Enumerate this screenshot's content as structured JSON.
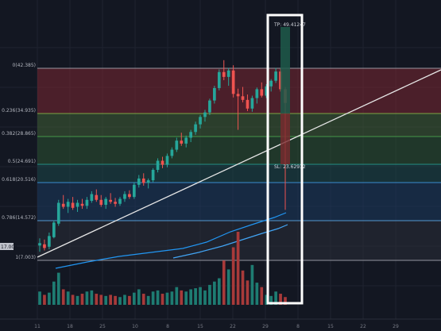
{
  "chart_data": {
    "type": "candlestick",
    "y_axis": {
      "scale": "log",
      "range": [
        16.0,
        52.0
      ]
    },
    "grid": true,
    "fib_levels": [
      {
        "ratio": 0,
        "label": "0(42.385)",
        "price": 42.385,
        "band_color": "#8b2a32"
      },
      {
        "ratio": 0.236,
        "label": "0.236(34.935)",
        "price": 34.935,
        "band_color": "#4d6b3a"
      },
      {
        "ratio": 0.382,
        "label": "0.382(28.865)",
        "price": 28.865,
        "band_color": "#2f5a34"
      },
      {
        "ratio": 0.5,
        "label": "0.5(24.691)",
        "price": 24.691,
        "band_color": "#1f4f4f"
      },
      {
        "ratio": 0.618,
        "label": "0.618(20.516)",
        "price": 20.516,
        "band_color": "#1e3f66"
      },
      {
        "ratio": 0.786,
        "label": "0.786(14.572)",
        "price": 14.572,
        "band_color": "#2a2d38"
      },
      {
        "ratio": 1,
        "label": "1(7.003)",
        "price": 7.003,
        "band_color": "#2a2d38"
      }
    ],
    "x_ticks": [
      "11",
      "18",
      "25",
      "10",
      "8",
      "15",
      "22",
      "29",
      "8",
      "15",
      "22",
      "29"
    ],
    "candles": [
      [
        17.3,
        17.9,
        16.8,
        17.5
      ],
      [
        17.4,
        17.8,
        16.9,
        17.1
      ],
      [
        17.2,
        18.4,
        17.0,
        18.1
      ],
      [
        18.0,
        19.5,
        17.9,
        19.3
      ],
      [
        19.2,
        21.5,
        19.0,
        21.2
      ],
      [
        21.1,
        22.0,
        20.6,
        20.8
      ],
      [
        20.8,
        21.6,
        20.2,
        21.3
      ],
      [
        21.2,
        21.8,
        20.5,
        20.7
      ],
      [
        20.8,
        21.5,
        20.3,
        21.2
      ],
      [
        21.1,
        21.6,
        20.6,
        20.9
      ],
      [
        20.9,
        21.8,
        20.6,
        21.5
      ],
      [
        21.4,
        22.4,
        21.2,
        22.1
      ],
      [
        22.0,
        22.6,
        21.3,
        21.5
      ],
      [
        21.5,
        22.0,
        20.8,
        21.0
      ],
      [
        21.0,
        21.8,
        20.6,
        21.6
      ],
      [
        21.5,
        22.2,
        21.1,
        21.3
      ],
      [
        21.3,
        21.7,
        20.8,
        21.1
      ],
      [
        21.1,
        21.8,
        20.9,
        21.6
      ],
      [
        21.6,
        22.4,
        21.3,
        22.1
      ],
      [
        22.1,
        22.5,
        21.6,
        21.8
      ],
      [
        21.8,
        23.4,
        21.6,
        23.1
      ],
      [
        23.1,
        24.2,
        22.8,
        23.8
      ],
      [
        23.8,
        24.4,
        23.0,
        23.3
      ],
      [
        23.3,
        23.8,
        22.7,
        23.6
      ],
      [
        23.6,
        25.0,
        23.4,
        24.8
      ],
      [
        24.8,
        26.2,
        24.5,
        25.9
      ],
      [
        25.9,
        26.4,
        25.0,
        25.4
      ],
      [
        25.4,
        26.8,
        25.1,
        26.5
      ],
      [
        26.5,
        27.6,
        26.2,
        27.3
      ],
      [
        27.3,
        28.9,
        27.0,
        28.5
      ],
      [
        28.5,
        29.6,
        27.8,
        28.1
      ],
      [
        28.1,
        29.2,
        27.6,
        28.9
      ],
      [
        28.9,
        30.0,
        28.3,
        29.7
      ],
      [
        29.7,
        31.2,
        29.3,
        30.8
      ],
      [
        30.8,
        32.2,
        30.2,
        31.9
      ],
      [
        31.9,
        33.0,
        31.2,
        32.6
      ],
      [
        32.6,
        34.8,
        32.2,
        34.5
      ],
      [
        34.5,
        37.0,
        34.0,
        36.6
      ],
      [
        36.6,
        40.0,
        36.2,
        39.5
      ],
      [
        39.5,
        41.8,
        38.0,
        38.6
      ],
      [
        38.6,
        40.3,
        37.0,
        39.8
      ],
      [
        39.8,
        40.8,
        35.0,
        35.6
      ],
      [
        35.6,
        36.5,
        30.0,
        35.2
      ],
      [
        35.2,
        36.8,
        34.2,
        34.6
      ],
      [
        34.6,
        35.5,
        32.8,
        33.2
      ],
      [
        33.2,
        35.3,
        32.7,
        34.9
      ],
      [
        34.9,
        36.7,
        34.0,
        36.4
      ],
      [
        36.4,
        37.6,
        35.0,
        35.3
      ],
      [
        35.3,
        37.3,
        34.9,
        36.9
      ],
      [
        36.9,
        38.2,
        36.0,
        37.9
      ],
      [
        37.9,
        40.3,
        37.5,
        39.6
      ],
      [
        39.6,
        40.1,
        36.0,
        36.4
      ],
      [
        36.4,
        36.8,
        20.5,
        34.1
      ]
    ],
    "volume": [
      1.2,
      0.9,
      1.1,
      2.1,
      2.9,
      1.4,
      1.2,
      0.9,
      0.8,
      1.0,
      1.2,
      1.3,
      1.0,
      0.9,
      0.8,
      0.9,
      0.8,
      0.7,
      0.9,
      0.8,
      1.1,
      1.4,
      1.0,
      0.8,
      1.2,
      1.3,
      1.0,
      1.1,
      1.2,
      1.6,
      1.3,
      1.2,
      1.4,
      1.5,
      1.6,
      1.3,
      1.8,
      2.1,
      2.4,
      4.0,
      3.2,
      5.2,
      6.6,
      3.1,
      2.2,
      3.6,
      2.0,
      1.6,
      0.9,
      0.8,
      1.2,
      1.0,
      0.7
    ],
    "tp_label": "TP: 49.41247",
    "sl_label": "SL: 23.62932",
    "tp_price": 49.41247,
    "sl_price": 23.62932,
    "price_tag": "17.003"
  }
}
